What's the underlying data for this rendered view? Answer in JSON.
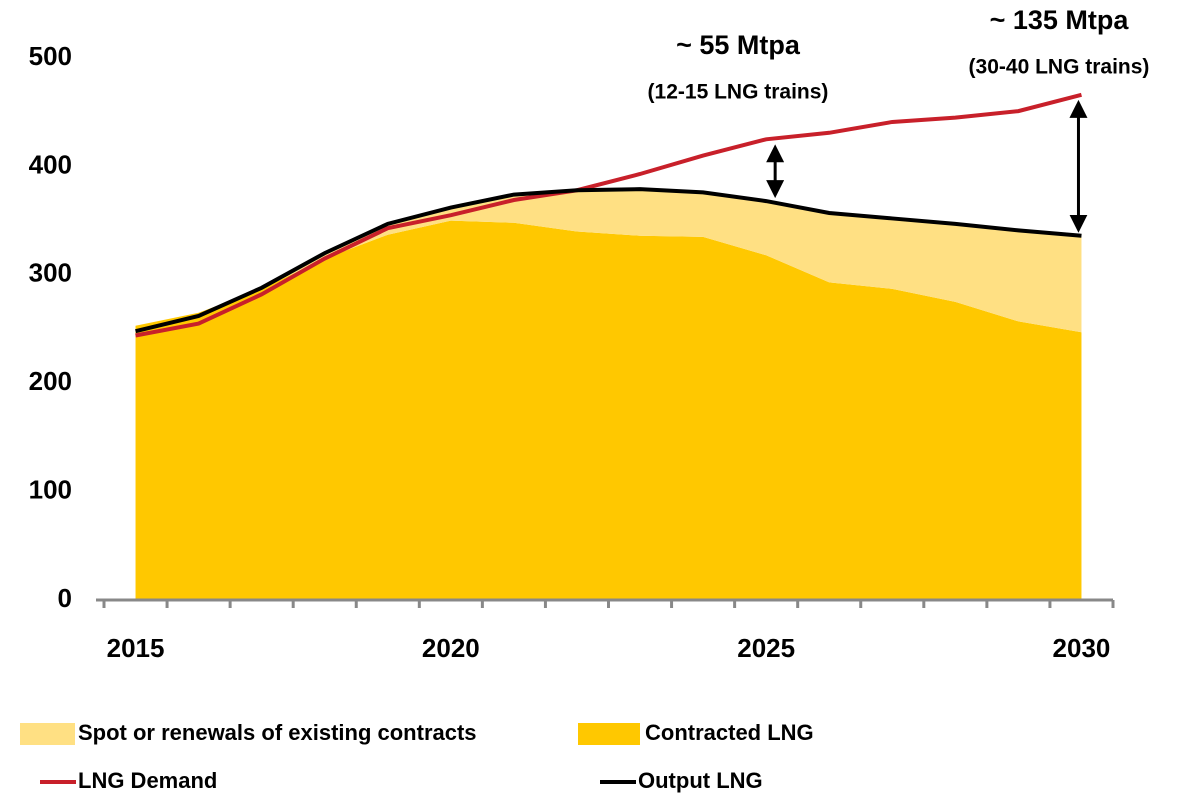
{
  "chart_data": {
    "type": "stacked_area_line",
    "categories": [
      "2015",
      null,
      null,
      null,
      null,
      "2020",
      null,
      null,
      null,
      null,
      "2025",
      null,
      null,
      null,
      null,
      "2030"
    ],
    "ylim": [
      0,
      500
    ],
    "yticks": [
      0,
      100,
      200,
      300,
      400,
      500
    ],
    "series": [
      {
        "name": "Spot or renewals of existing contracts",
        "color": "#ffe083",
        "kind": "area",
        "values": [
          0,
          0,
          0,
          5,
          10,
          12,
          26,
          38,
          43,
          41,
          50,
          64,
          65,
          72,
          84,
          89
        ]
      },
      {
        "name": "Contracted LNG",
        "color": "#ffc800",
        "kind": "area",
        "values": [
          253,
          265,
          287,
          315,
          337,
          350,
          348,
          340,
          336,
          335,
          318,
          293,
          287,
          275,
          257,
          247
        ]
      },
      {
        "name": "LNG Demand",
        "color": "#c8202a",
        "kind": "line",
        "values": [
          244,
          255,
          282,
          315,
          343,
          355,
          369,
          378,
          393,
          410,
          425,
          431,
          441,
          445,
          451,
          466
        ]
      },
      {
        "name": "Output LNG",
        "color": "#000000",
        "kind": "line",
        "values": [
          248,
          262,
          288,
          320,
          347,
          362,
          374,
          378,
          379,
          376,
          368,
          357,
          352,
          347,
          341,
          336
        ]
      }
    ],
    "annotations": [
      {
        "text": "~ 55 Mtpa",
        "subtext": "(12-15 LNG trains)"
      },
      {
        "text": "~ 135 Mtpa",
        "subtext": "(30-40 LNG trains)"
      }
    ]
  }
}
